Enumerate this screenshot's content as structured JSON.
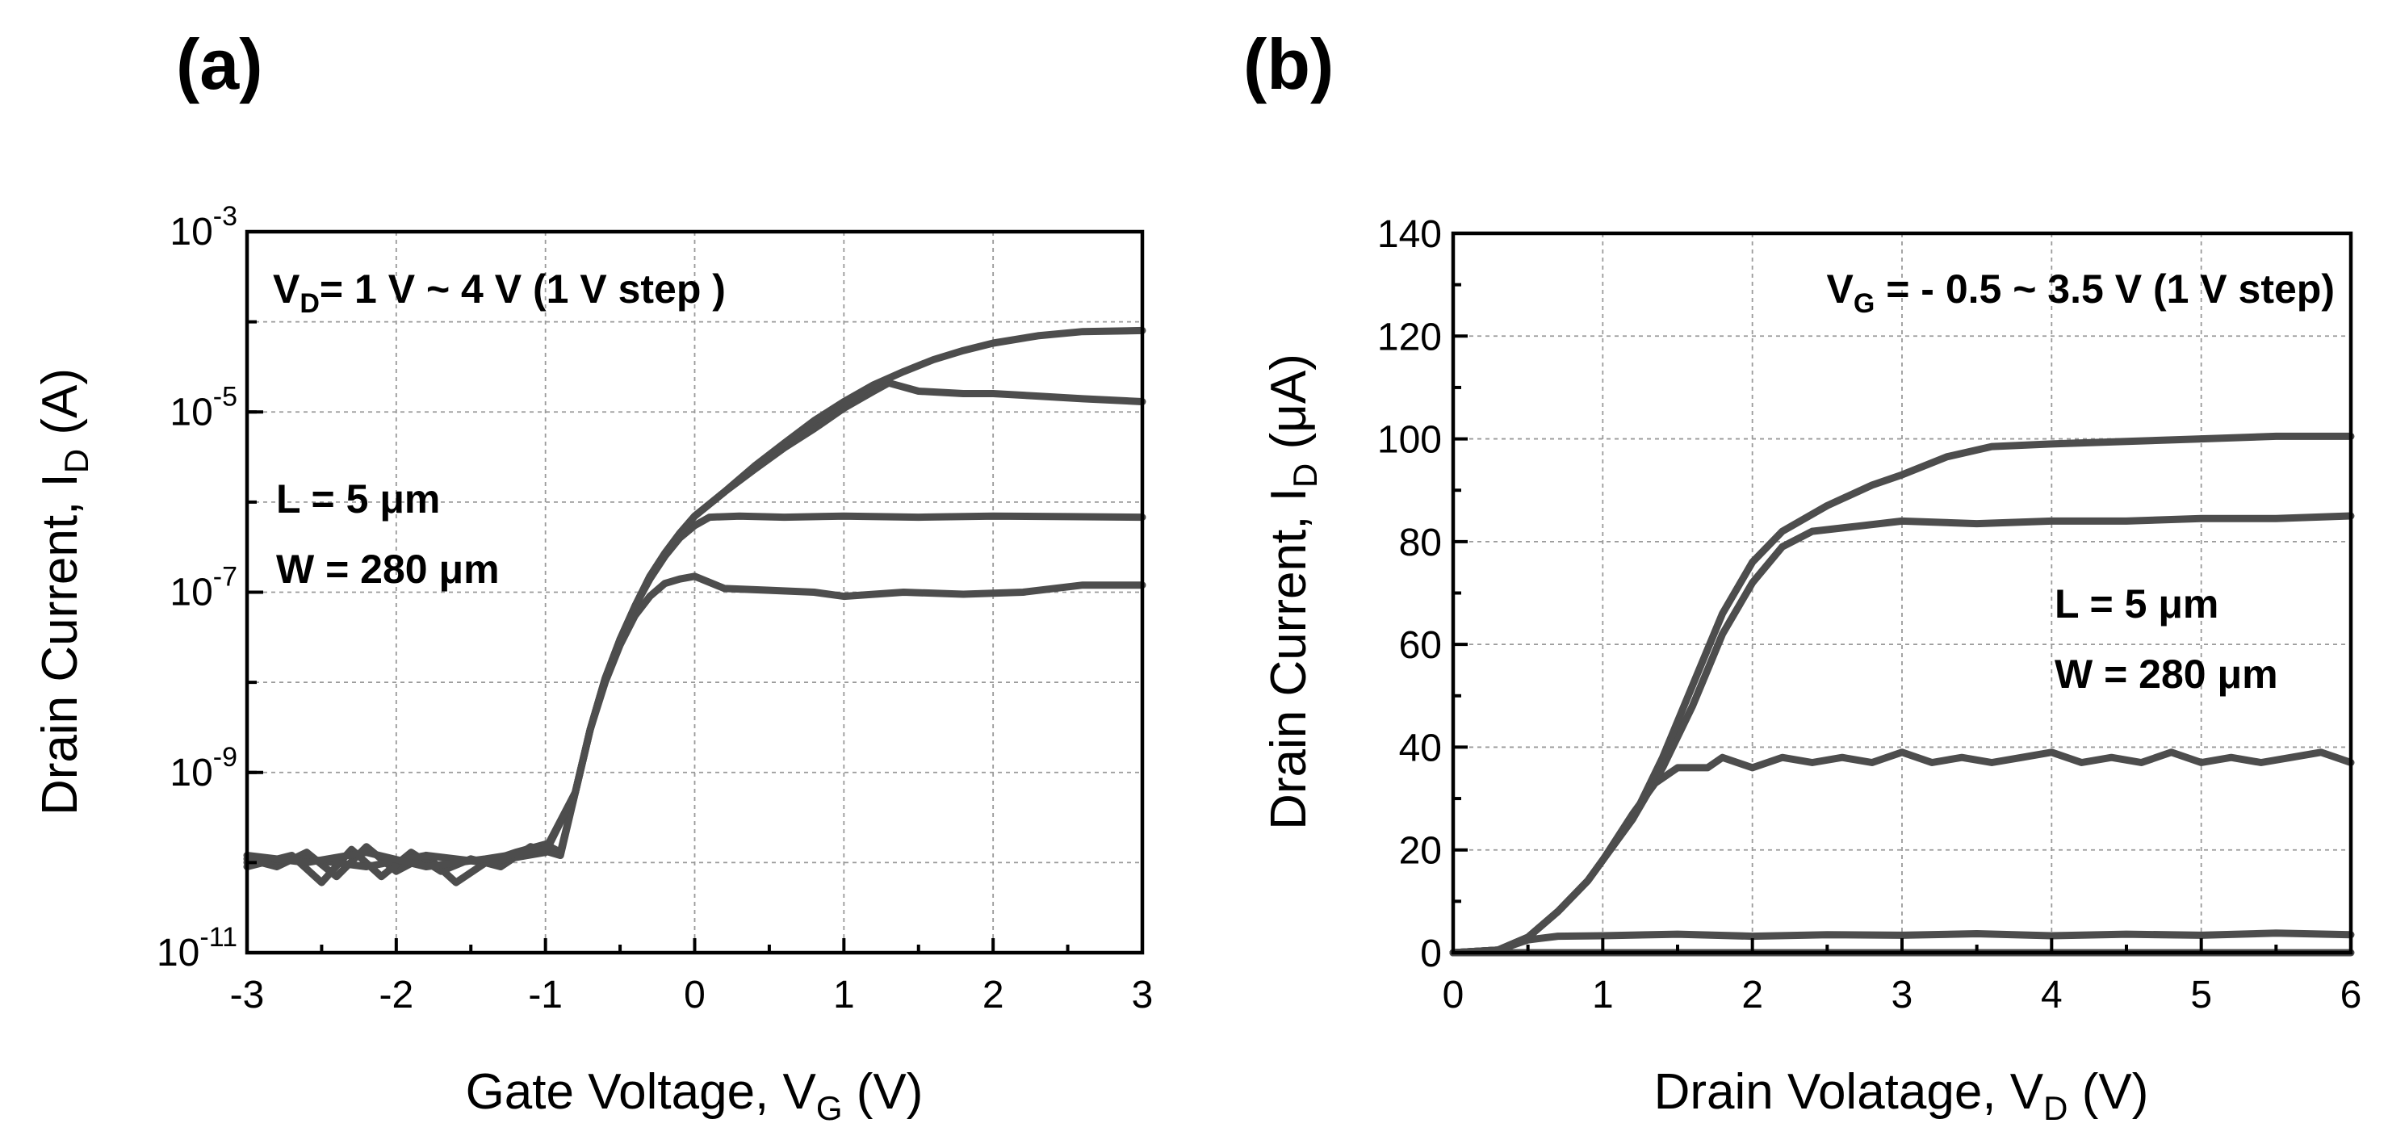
{
  "chart_data": [
    {
      "panel_label": "(a)",
      "type": "line",
      "xlabel_prefix": "Gate Voltage, V",
      "xlabel_sub": "G",
      "xlabel_suffix": " (V)",
      "ylabel_prefix": "Drain Current, I",
      "ylabel_sub": "D",
      "ylabel_suffix": " (A)",
      "xlim": [
        -3,
        3
      ],
      "ylim": [
        1e-11,
        0.001
      ],
      "yscale": "log",
      "x_ticks": [
        "-3",
        "-2",
        "-1",
        "0",
        "1",
        "2",
        "3"
      ],
      "y_ticks": [
        {
          "base": "10",
          "exp": "-11",
          "value": 1e-11
        },
        {
          "base": "10",
          "exp": "-9",
          "value": 1e-09
        },
        {
          "base": "10",
          "exp": "-7",
          "value": 1e-07
        },
        {
          "base": "10",
          "exp": "-5",
          "value": 1e-05
        },
        {
          "base": "10",
          "exp": "-3",
          "value": 0.001
        }
      ],
      "grid": true,
      "annotations": {
        "condition_prefix": "V",
        "condition_sub": "D",
        "condition_suffix": "= 1 V ~ 4 V (1 V step )",
        "length": "L = 5 μm",
        "width": "W = 280 μm"
      },
      "series": [
        {
          "values": [
            [
              -3,
              1.1e-10
            ],
            [
              -2.8,
              9e-11
            ],
            [
              -2.6,
              1.3e-10
            ],
            [
              -2.4,
              7e-11
            ],
            [
              -2.2,
              1.5e-10
            ],
            [
              -2.0,
              8e-11
            ],
            [
              -1.8,
              1.2e-10
            ],
            [
              -1.6,
              6e-11
            ],
            [
              -1.4,
              1e-10
            ],
            [
              -1.2,
              1.3e-10
            ],
            [
              -1.0,
              1.6e-10
            ],
            [
              -0.9,
              1.3e-10
            ],
            [
              -0.8,
              6e-10
            ],
            [
              -0.7,
              3e-09
            ],
            [
              -0.6,
              1e-08
            ],
            [
              -0.5,
              2.6e-08
            ],
            [
              -0.4,
              5.5e-08
            ],
            [
              -0.3,
              9e-08
            ],
            [
              -0.2,
              1.25e-07
            ],
            [
              -0.1,
              1.4e-07
            ],
            [
              0.0,
              1.5e-07
            ],
            [
              0.2,
              1.1e-07
            ],
            [
              0.5,
              1.05e-07
            ],
            [
              0.8,
              1e-07
            ],
            [
              1.0,
              9e-08
            ],
            [
              1.4,
              1e-07
            ],
            [
              1.8,
              9.5e-08
            ],
            [
              2.2,
              1e-07
            ],
            [
              2.6,
              1.2e-07
            ],
            [
              3.0,
              1.2e-07
            ]
          ]
        },
        {
          "values": [
            [
              -3,
              9e-11
            ],
            [
              -2.7,
              1.2e-10
            ],
            [
              -2.5,
              6e-11
            ],
            [
              -2.3,
              1.4e-10
            ],
            [
              -2.1,
              7e-11
            ],
            [
              -1.9,
              1.3e-10
            ],
            [
              -1.7,
              8e-11
            ],
            [
              -1.5,
              1.1e-10
            ],
            [
              -1.3,
              9e-11
            ],
            [
              -1.1,
              1.5e-10
            ],
            [
              -0.9,
              1.2e-10
            ],
            [
              -0.8,
              6e-10
            ],
            [
              -0.7,
              3e-09
            ],
            [
              -0.6,
              1.1e-08
            ],
            [
              -0.5,
              3e-08
            ],
            [
              -0.4,
              7e-08
            ],
            [
              -0.3,
              1.4e-07
            ],
            [
              -0.2,
              2.5e-07
            ],
            [
              -0.1,
              4e-07
            ],
            [
              0.0,
              5.5e-07
            ],
            [
              0.1,
              6.8e-07
            ],
            [
              0.3,
              7e-07
            ],
            [
              0.6,
              6.8e-07
            ],
            [
              1.0,
              7e-07
            ],
            [
              1.5,
              6.8e-07
            ],
            [
              2.0,
              7e-07
            ],
            [
              2.5,
              6.9e-07
            ],
            [
              3.0,
              6.8e-07
            ]
          ]
        },
        {
          "values": [
            [
              -3,
              1e-10
            ],
            [
              -2.6,
              1.1e-10
            ],
            [
              -2.2,
              9e-11
            ],
            [
              -1.8,
              1.2e-10
            ],
            [
              -1.4,
              1e-10
            ],
            [
              -1.0,
              1.3e-10
            ],
            [
              -0.8,
              6e-10
            ],
            [
              -0.7,
              3e-09
            ],
            [
              -0.6,
              1.1e-08
            ],
            [
              -0.5,
              3e-08
            ],
            [
              -0.4,
              7e-08
            ],
            [
              -0.3,
              1.5e-07
            ],
            [
              -0.2,
              2.7e-07
            ],
            [
              -0.1,
              4.5e-07
            ],
            [
              0.0,
              7e-07
            ],
            [
              0.2,
              1.3e-06
            ],
            [
              0.4,
              2.3e-06
            ],
            [
              0.6,
              4e-06
            ],
            [
              0.8,
              6.5e-06
            ],
            [
              1.0,
              1.1e-05
            ],
            [
              1.2,
              1.7e-05
            ],
            [
              1.3,
              2.1e-05
            ],
            [
              1.5,
              1.7e-05
            ],
            [
              1.8,
              1.6e-05
            ],
            [
              2.0,
              1.6e-05
            ],
            [
              2.3,
              1.5e-05
            ],
            [
              2.6,
              1.4e-05
            ],
            [
              3.0,
              1.3e-05
            ]
          ]
        },
        {
          "values": [
            [
              -3,
              1.2e-10
            ],
            [
              -2.6,
              1e-10
            ],
            [
              -2.2,
              1.3e-10
            ],
            [
              -1.8,
              9e-11
            ],
            [
              -1.4,
              1.1e-10
            ],
            [
              -1.0,
              1.4e-10
            ],
            [
              -0.8,
              6e-10
            ],
            [
              -0.7,
              3e-09
            ],
            [
              -0.6,
              1.1e-08
            ],
            [
              -0.5,
              3e-08
            ],
            [
              -0.4,
              7e-08
            ],
            [
              -0.3,
              1.5e-07
            ],
            [
              -0.2,
              2.7e-07
            ],
            [
              -0.1,
              4.5e-07
            ],
            [
              0.0,
              7e-07
            ],
            [
              0.2,
              1.3e-06
            ],
            [
              0.4,
              2.5e-06
            ],
            [
              0.6,
              4.5e-06
            ],
            [
              0.8,
              8e-06
            ],
            [
              1.0,
              1.3e-05
            ],
            [
              1.2,
              2e-05
            ],
            [
              1.4,
              2.8e-05
            ],
            [
              1.6,
              3.8e-05
            ],
            [
              1.8,
              4.8e-05
            ],
            [
              2.0,
              5.8e-05
            ],
            [
              2.3,
              7e-05
            ],
            [
              2.6,
              7.8e-05
            ],
            [
              3.0,
              8e-05
            ]
          ]
        }
      ]
    },
    {
      "panel_label": "(b)",
      "type": "line",
      "xlabel_prefix": "Drain Volatage, V",
      "xlabel_sub": "D",
      "xlabel_suffix": " (V)",
      "ylabel_prefix": "Drain Current, I",
      "ylabel_sub": "D",
      "ylabel_suffix": " (μA)",
      "xlim": [
        0,
        6
      ],
      "ylim": [
        0,
        140
      ],
      "yscale": "linear",
      "x_ticks": [
        "0",
        "1",
        "2",
        "3",
        "4",
        "5",
        "6"
      ],
      "y_ticks": [
        "0",
        "20",
        "40",
        "60",
        "80",
        "100",
        "120",
        "140"
      ],
      "grid": true,
      "annotations": {
        "condition_prefix": "V",
        "condition_sub": "G",
        "condition_suffix": " = - 0.5 ~ 3.5 V (1 V step)",
        "length": "L = 5 μm",
        "width": "W = 280 μm"
      },
      "series": [
        {
          "values": [
            [
              0,
              0
            ],
            [
              6,
              0
            ]
          ]
        },
        {
          "values": [
            [
              0,
              0
            ],
            [
              0.3,
              0.5
            ],
            [
              0.5,
              2.5
            ],
            [
              0.7,
              3.2
            ],
            [
              1.0,
              3.3
            ],
            [
              1.5,
              3.6
            ],
            [
              2.0,
              3.2
            ],
            [
              2.5,
              3.5
            ],
            [
              3.0,
              3.4
            ],
            [
              3.5,
              3.7
            ],
            [
              4.0,
              3.3
            ],
            [
              4.5,
              3.6
            ],
            [
              5.0,
              3.4
            ],
            [
              5.5,
              3.8
            ],
            [
              6.0,
              3.5
            ]
          ]
        },
        {
          "values": [
            [
              0,
              0
            ],
            [
              0.3,
              0.5
            ],
            [
              0.5,
              3
            ],
            [
              0.7,
              8
            ],
            [
              0.9,
              14
            ],
            [
              1.0,
              18
            ],
            [
              1.2,
              27
            ],
            [
              1.35,
              33
            ],
            [
              1.5,
              36
            ],
            [
              1.7,
              36
            ],
            [
              1.8,
              38
            ],
            [
              2.0,
              36
            ],
            [
              2.2,
              38
            ],
            [
              2.4,
              37
            ],
            [
              2.6,
              38
            ],
            [
              2.8,
              37
            ],
            [
              3.0,
              39
            ],
            [
              3.2,
              37
            ],
            [
              3.4,
              38
            ],
            [
              3.6,
              37
            ],
            [
              3.8,
              38
            ],
            [
              4.0,
              39
            ],
            [
              4.2,
              37
            ],
            [
              4.4,
              38
            ],
            [
              4.6,
              37
            ],
            [
              4.8,
              39
            ],
            [
              5.0,
              37
            ],
            [
              5.2,
              38
            ],
            [
              5.4,
              37
            ],
            [
              5.6,
              38
            ],
            [
              5.8,
              39
            ],
            [
              6.0,
              37
            ]
          ]
        },
        {
          "values": [
            [
              0,
              0
            ],
            [
              0.3,
              0.5
            ],
            [
              0.5,
              3
            ],
            [
              0.7,
              8
            ],
            [
              0.9,
              14
            ],
            [
              1.0,
              18
            ],
            [
              1.2,
              26
            ],
            [
              1.4,
              36
            ],
            [
              1.6,
              48
            ],
            [
              1.8,
              62
            ],
            [
              2.0,
              72
            ],
            [
              2.2,
              79
            ],
            [
              2.4,
              82
            ],
            [
              2.7,
              83
            ],
            [
              3.0,
              84
            ],
            [
              3.5,
              83.5
            ],
            [
              4.0,
              84
            ],
            [
              4.5,
              84
            ],
            [
              5.0,
              84.5
            ],
            [
              5.5,
              84.5
            ],
            [
              6.0,
              85
            ]
          ]
        },
        {
          "values": [
            [
              0,
              0
            ],
            [
              0.3,
              0.5
            ],
            [
              0.5,
              3
            ],
            [
              0.7,
              8
            ],
            [
              0.9,
              14
            ],
            [
              1.0,
              18
            ],
            [
              1.2,
              26
            ],
            [
              1.4,
              38
            ],
            [
              1.6,
              52
            ],
            [
              1.8,
              66
            ],
            [
              2.0,
              76
            ],
            [
              2.2,
              82
            ],
            [
              2.5,
              87
            ],
            [
              2.8,
              91
            ],
            [
              3.0,
              93
            ],
            [
              3.3,
              96.5
            ],
            [
              3.6,
              98.5
            ],
            [
              4.0,
              99
            ],
            [
              4.5,
              99.5
            ],
            [
              5.0,
              100
            ],
            [
              5.5,
              100.5
            ],
            [
              6.0,
              100.5
            ]
          ]
        }
      ]
    }
  ]
}
